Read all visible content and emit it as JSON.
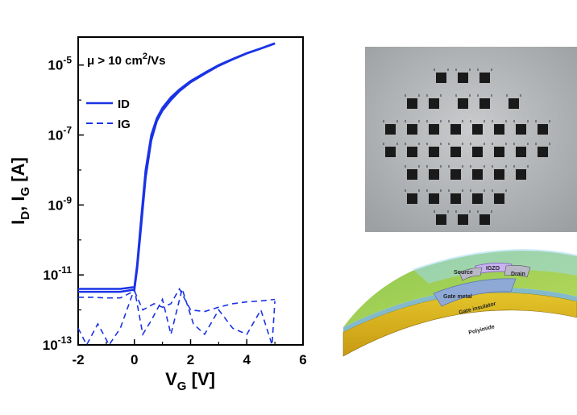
{
  "chart_data": {
    "type": "line",
    "x_label_main": "V",
    "x_label_sub": "G",
    "x_label_unit": " [V]",
    "y_label_parts": [
      "I",
      "D",
      ", I",
      "G",
      " [A]"
    ],
    "xlim": [
      -2,
      6
    ],
    "ylim_log10": [
      -13,
      -4.2
    ],
    "x_ticks": [
      -2,
      0,
      2,
      4,
      6
    ],
    "y_ticks": [
      {
        "exp": -5,
        "base": "10",
        "sup": "-5"
      },
      {
        "exp": -7,
        "base": "10",
        "sup": "-7"
      },
      {
        "exp": -9,
        "base": "10",
        "sup": "-9"
      },
      {
        "exp": -11,
        "base": "10",
        "sup": "-11"
      },
      {
        "exp": -13,
        "base": "10",
        "sup": "-13"
      }
    ],
    "annotation": {
      "text_main": "μ > 10 cm",
      "text_sup": "2",
      "text_tail": "/Vs"
    },
    "legend": {
      "placement": "top-left",
      "entries": [
        {
          "name": "ID",
          "style": "solid"
        },
        {
          "name": "IG",
          "style": "dashed"
        }
      ]
    },
    "series": [
      {
        "name": "ID",
        "style": "solid",
        "x": [
          -2,
          -1,
          -0.5,
          0,
          0.1,
          0.25,
          0.4,
          0.6,
          0.8,
          1.0,
          1.3,
          1.6,
          2.0,
          2.5,
          3.0,
          3.5,
          4.0,
          4.5,
          5.0
        ],
        "y": [
          4e-12,
          4e-12,
          4e-12,
          4.5e-12,
          2e-11,
          5e-10,
          1e-08,
          1e-07,
          3e-07,
          6e-07,
          1.2e-06,
          2e-06,
          3.5e-06,
          6e-06,
          1e-05,
          1.5e-05,
          2.2e-05,
          3e-05,
          4.2e-05
        ]
      },
      {
        "name": "ID",
        "style": "solid",
        "x": [
          -2,
          -1,
          -0.5,
          0,
          0.1,
          0.25,
          0.4,
          0.6,
          0.8,
          1.0,
          1.3,
          1.6,
          2.0,
          2.5,
          3.0,
          3.5,
          4.0,
          4.5,
          5.0
        ],
        "y": [
          3.3e-12,
          3.3e-12,
          3.3e-12,
          3.8e-12,
          1.5e-11,
          3e-10,
          6e-09,
          7e-08,
          2.5e-07,
          5e-07,
          1e-06,
          1.8e-06,
          3.2e-06,
          5.6e-06,
          9.5e-06,
          1.45e-05,
          2.15e-05,
          2.95e-05,
          4.1e-05
        ]
      },
      {
        "name": "IG",
        "style": "dashed",
        "x": [
          -2,
          -1.5,
          -1,
          -0.5,
          0,
          0.3,
          0.7,
          1.0,
          1.3,
          1.6,
          2.0,
          2.5,
          3.0,
          3.5,
          4.0,
          4.5,
          5.0
        ],
        "y": [
          2.3e-12,
          2.3e-12,
          2.2e-12,
          2.2e-12,
          3.5e-12,
          1e-12,
          1.5e-12,
          1.2e-12,
          1.5e-12,
          4e-12,
          1e-12,
          9e-13,
          1.2e-12,
          1.5e-12,
          1.7e-12,
          1.8e-12,
          2e-12
        ]
      },
      {
        "name": "IG",
        "style": "dashed",
        "x": [
          -2,
          -1.7,
          -1.3,
          -0.9,
          -0.5,
          0,
          0.3,
          0.6,
          1.0,
          1.3,
          1.7,
          2.1,
          2.5,
          3.0,
          3.5,
          4.0,
          4.5,
          4.9,
          5.0
        ],
        "y": [
          3e-13,
          1e-13,
          4e-13,
          1e-13,
          3e-13,
          4e-12,
          2e-13,
          5e-13,
          2e-12,
          2e-13,
          4e-12,
          4e-13,
          2e-13,
          1e-12,
          3e-13,
          2e-13,
          1e-12,
          1e-13,
          1.8e-12
        ]
      }
    ]
  },
  "diagram": {
    "labels": {
      "source": "Source",
      "igzo": "IGZO",
      "drain": "Drain",
      "gate_metal": "Gate metal",
      "gate_insulator": "Gate insulator",
      "polyimide": "Polyimide"
    }
  }
}
